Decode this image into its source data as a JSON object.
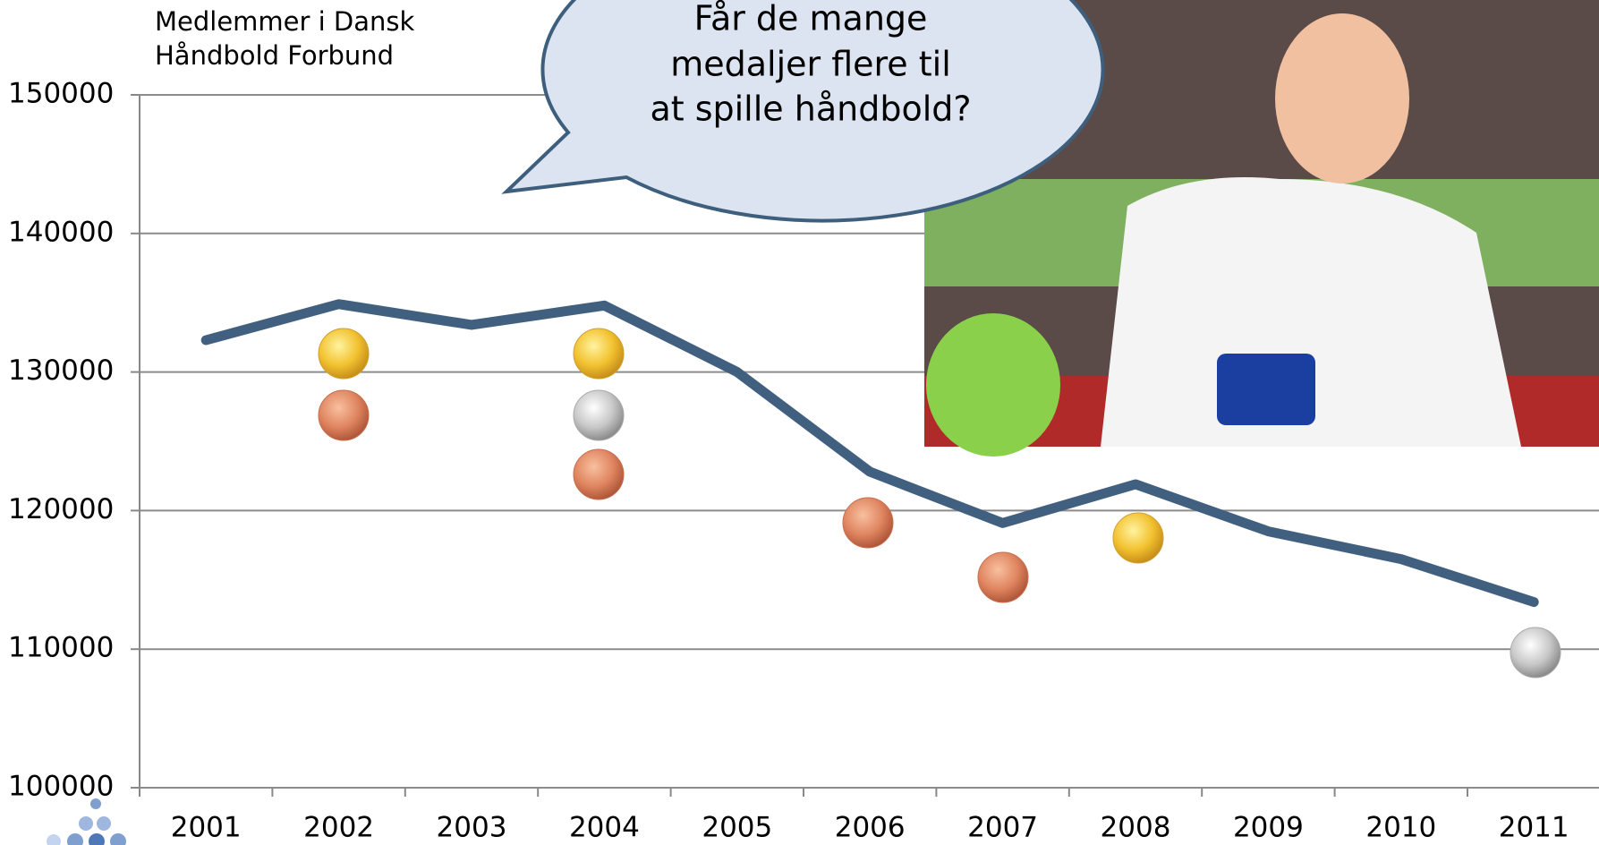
{
  "chart_data": {
    "type": "line",
    "y_label": [
      "Medlemmer i Dansk",
      "Håndbold Forbund"
    ],
    "annotation": [
      "Får de mange",
      "medaljer flere til",
      "at spille håndbold?"
    ],
    "categories": [
      "2001",
      "2002",
      "2003",
      "2004",
      "2005",
      "2006",
      "2007",
      "2008",
      "2009",
      "2010",
      "2011"
    ],
    "values": [
      132300,
      134900,
      133400,
      134800,
      130000,
      122800,
      119100,
      121900,
      118500,
      116500,
      113400
    ],
    "color": "#41607f",
    "ylim": [
      100000,
      150000
    ],
    "yticks": [
      100000,
      110000,
      120000,
      130000,
      140000,
      150000
    ],
    "grid": true
  }
}
